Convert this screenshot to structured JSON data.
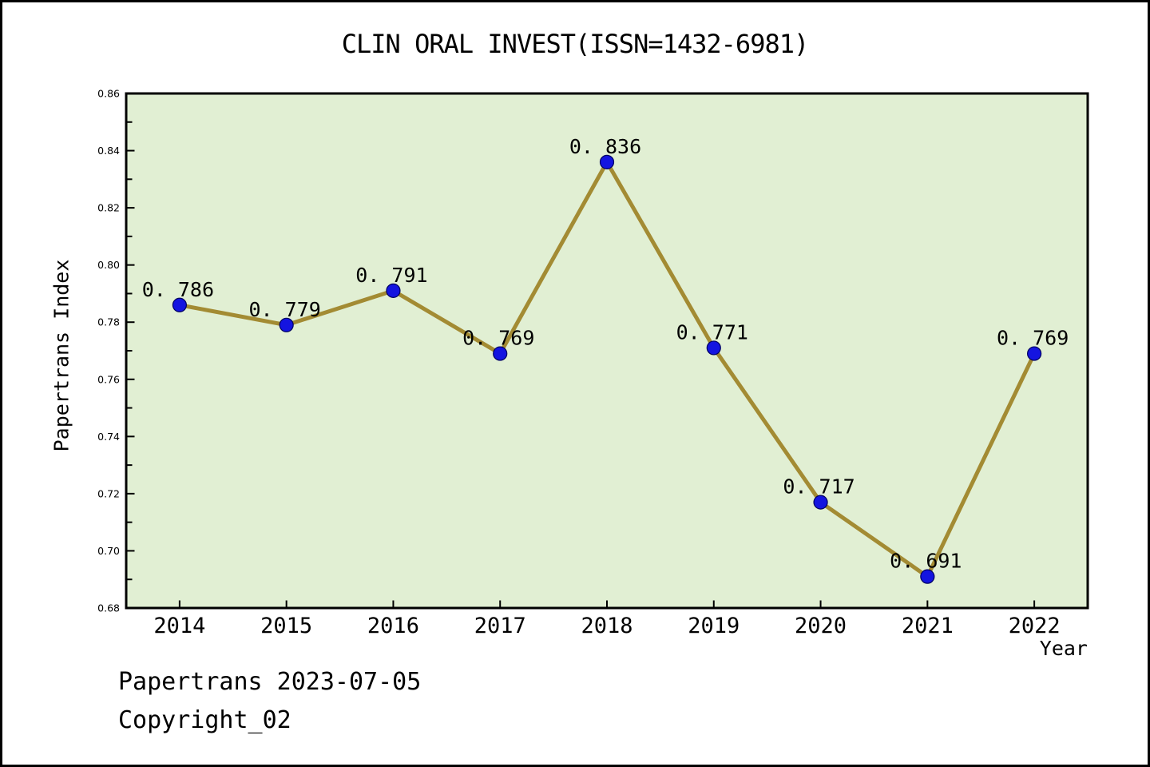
{
  "window": {
    "background": "#ffffff",
    "border_color": "#000000"
  },
  "chart_data": {
    "type": "line",
    "title": "CLIN ORAL INVEST(ISSN=1432-6981)",
    "categories": [
      "2014",
      "2015",
      "2016",
      "2017",
      "2018",
      "2019",
      "2020",
      "2021",
      "2022"
    ],
    "values": [
      0.786,
      0.779,
      0.791,
      0.769,
      0.836,
      0.771,
      0.717,
      0.691,
      0.769
    ],
    "point_labels": [
      "0. 786",
      "0. 779",
      "0. 791",
      "0. 769",
      "0. 836",
      "0. 771",
      "0. 717",
      "0. 691",
      "0. 769"
    ],
    "xlabel": "Year",
    "ylabel": "Papertrans Index",
    "ylim": [
      0.68,
      0.86
    ],
    "y_major_step": 0.02,
    "y_minor_step": 0.01,
    "y_tick_labels": [
      "0.68",
      "0.70",
      "0.72",
      "0.74",
      "0.76",
      "0.78",
      "0.80",
      "0.82",
      "0.84",
      "0.86"
    ],
    "grid": false,
    "legend": false,
    "colors": {
      "line": "#a38b33",
      "marker_fill": "#1414e0",
      "marker_edge": "#000060",
      "plot_background": "#e1efd3",
      "frame": "#000000",
      "text": "#000000"
    }
  },
  "footer": {
    "line1": "Papertrans 2023-07-05",
    "line2": "Copyright_02"
  }
}
